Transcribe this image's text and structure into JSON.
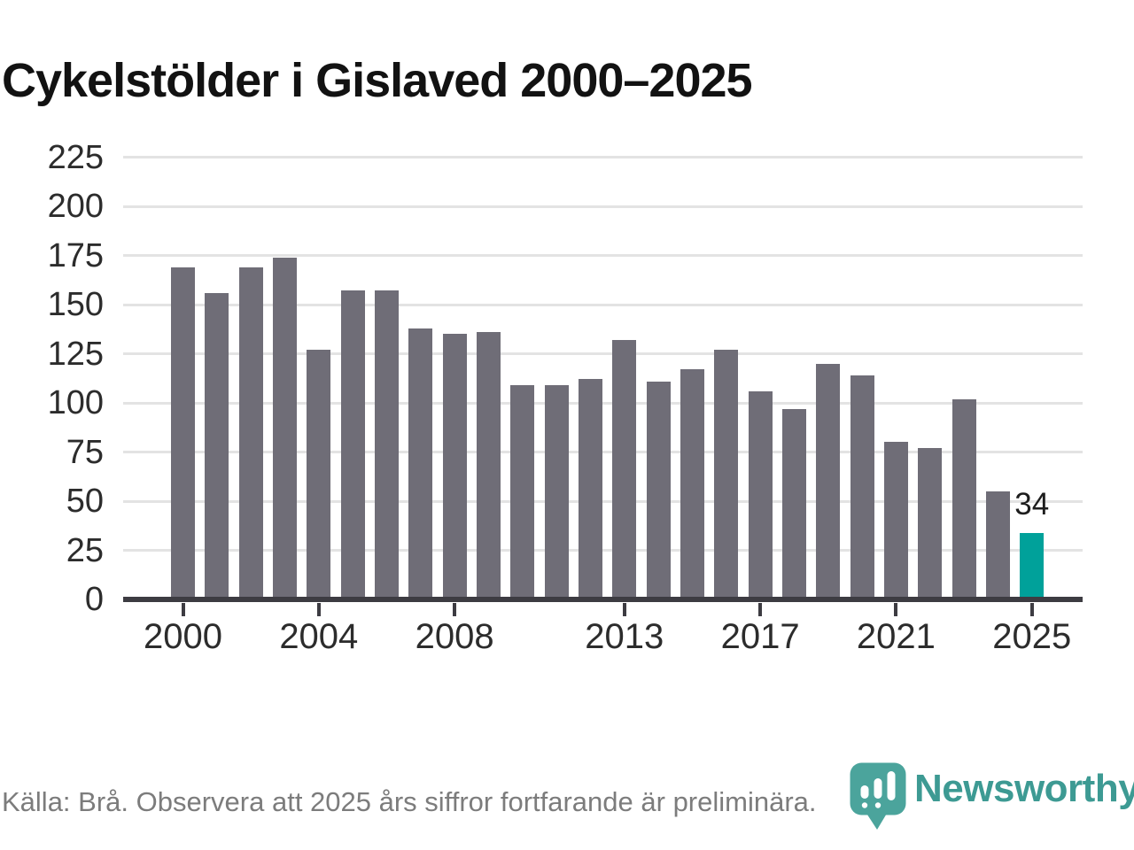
{
  "title": "Cykelstölder i Gislaved 2000–2025",
  "source_note": "Källa: Brå. Observera att 2025 års siffror fortfarande är preliminära.",
  "logo": {
    "brand": "Newsworthy",
    "icon": "newsworthy-pin-chart-icon"
  },
  "annotation": {
    "year": 2025,
    "label": "34"
  },
  "colors": {
    "bar": "#6f6d77",
    "highlight": "#00a19a",
    "gridline": "#e3e3e3",
    "axis": "#3d3c42",
    "title_text": "#121212",
    "tick_text": "#2c2c2c",
    "source_text": "#7c7c7c",
    "logo_icon_teal": "#4ba49c",
    "logo_text_teal": "#3d9a93"
  },
  "chart_data": {
    "type": "bar",
    "title": "Cykelstölder i Gislaved 2000–2025",
    "xlabel": "",
    "ylabel": "",
    "categories": [
      2000,
      2001,
      2002,
      2003,
      2004,
      2005,
      2006,
      2007,
      2008,
      2009,
      2010,
      2011,
      2012,
      2013,
      2014,
      2015,
      2016,
      2017,
      2018,
      2019,
      2020,
      2021,
      2022,
      2023,
      2024,
      2025
    ],
    "values": [
      169,
      156,
      169,
      174,
      127,
      157,
      157,
      138,
      135,
      136,
      109,
      109,
      112,
      132,
      111,
      117,
      127,
      106,
      97,
      120,
      114,
      80,
      77,
      102,
      55,
      34
    ],
    "highlight_category": 2025,
    "data_label": {
      "category": 2025,
      "text": "34"
    },
    "ylim": [
      0,
      232
    ],
    "yticks": [
      0,
      25,
      50,
      75,
      100,
      125,
      150,
      175,
      200,
      225
    ],
    "xticks": [
      2000,
      2004,
      2008,
      2013,
      2017,
      2021,
      2025
    ],
    "grid": true,
    "legend": "none",
    "bar_color": "#6f6d77",
    "highlight_color": "#00a19a"
  }
}
